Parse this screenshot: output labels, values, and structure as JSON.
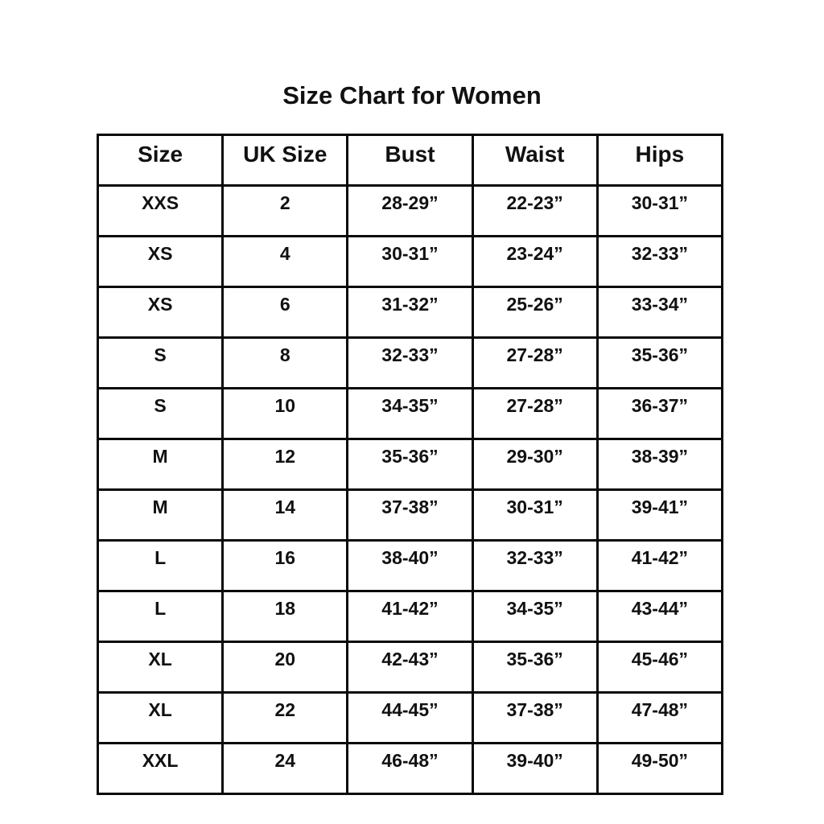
{
  "title": "Size Chart for Women",
  "colors": {
    "background": "#ffffff",
    "border": "#0a0a0a",
    "text": "#111111"
  },
  "chart_data": {
    "type": "table",
    "title": "Size Chart for Women",
    "columns": [
      "Size",
      "UK Size",
      "Bust",
      "Waist",
      "Hips"
    ],
    "rows": [
      [
        "XXS",
        "2",
        "28-29”",
        "22-23”",
        "30-31”"
      ],
      [
        "XS",
        "4",
        "30-31”",
        "23-24”",
        "32-33”"
      ],
      [
        "XS",
        "6",
        "31-32”",
        "25-26”",
        "33-34”"
      ],
      [
        "S",
        "8",
        "32-33”",
        "27-28”",
        "35-36”"
      ],
      [
        "S",
        "10",
        "34-35”",
        "27-28”",
        "36-37”"
      ],
      [
        "M",
        "12",
        "35-36”",
        "29-30”",
        "38-39”"
      ],
      [
        "M",
        "14",
        "37-38”",
        "30-31”",
        "39-41”"
      ],
      [
        "L",
        "16",
        "38-40”",
        "32-33”",
        "41-42”"
      ],
      [
        "L",
        "18",
        "41-42”",
        "34-35”",
        "43-44”"
      ],
      [
        "XL",
        "20",
        "42-43”",
        "35-36”",
        "45-46”"
      ],
      [
        "XL",
        "22",
        "44-45”",
        "37-38”",
        "47-48”"
      ],
      [
        "XXL",
        "24",
        "46-48”",
        "39-40”",
        "49-50”"
      ]
    ]
  }
}
